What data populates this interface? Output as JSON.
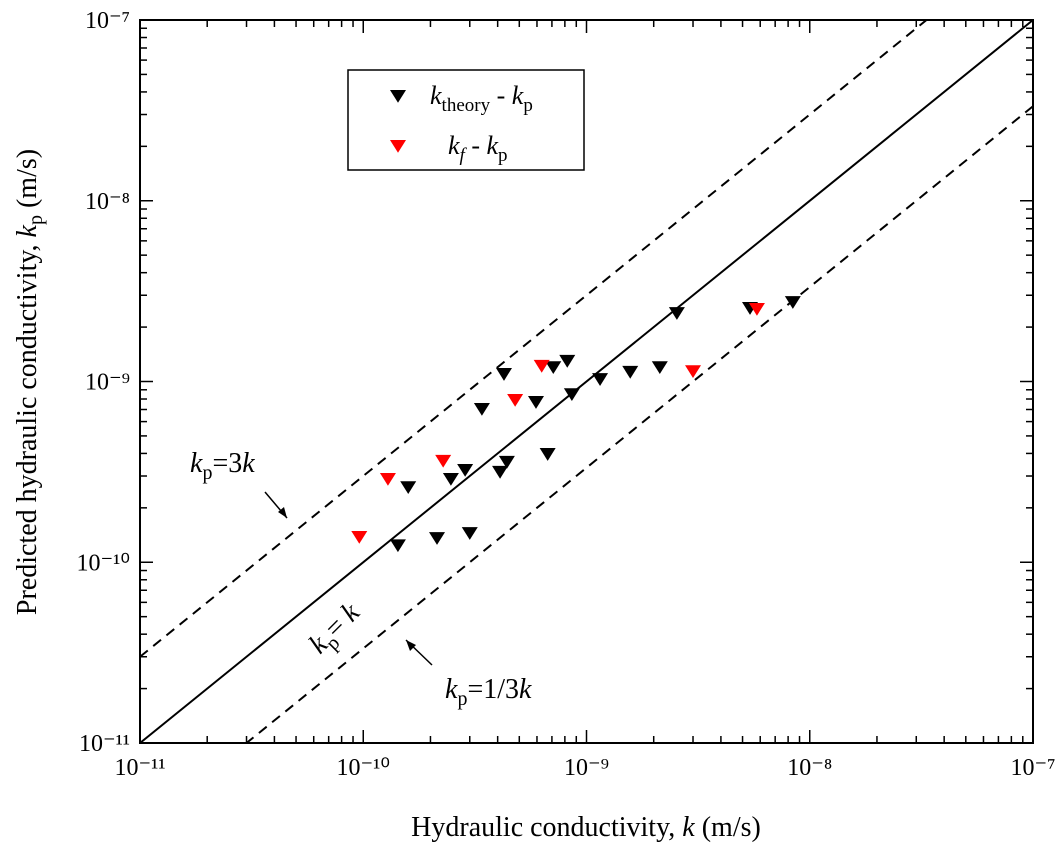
{
  "chart_data": {
    "type": "scatter",
    "x_label": [
      "Hydraulic conductivity, ",
      "k",
      " (m/s)"
    ],
    "y_label": [
      "Predicted hydraulic conductivity, ",
      "k",
      "p",
      " (m/s)"
    ],
    "xscale": "log",
    "yscale": "log",
    "xlim": [
      1e-11,
      1e-07
    ],
    "ylim": [
      1e-11,
      1e-07
    ],
    "xticks": [
      {
        "value": 1e-11,
        "label": "10⁻¹¹"
      },
      {
        "value": 1e-10,
        "label": "10⁻¹⁰"
      },
      {
        "value": 1e-09,
        "label": "10⁻⁹"
      },
      {
        "value": 1e-08,
        "label": "10⁻⁸"
      },
      {
        "value": 1e-07,
        "label": "10⁻⁷"
      }
    ],
    "yticks": [
      {
        "value": 1e-11,
        "label": "10⁻¹¹"
      },
      {
        "value": 1e-10,
        "label": "10⁻¹⁰"
      },
      {
        "value": 1e-09,
        "label": "10⁻⁹"
      },
      {
        "value": 1e-08,
        "label": "10⁻⁸"
      },
      {
        "value": 1e-07,
        "label": "10⁻⁷"
      }
    ],
    "series": [
      {
        "name": [
          "k",
          "theory",
          " - ",
          "k",
          "p"
        ],
        "color": "#000000",
        "x": [
          1.43e-10,
          1.59e-10,
          2.14e-10,
          2.47e-10,
          2.86e-10,
          3e-10,
          3.4e-10,
          4.1e-10,
          4.4e-10,
          4.27e-10,
          5.94e-10,
          6.7e-10,
          7.1e-10,
          8.2e-10,
          8.6e-10,
          1.15e-09,
          1.57e-09,
          2.13e-09,
          2.54e-09,
          5.4e-09,
          8.4e-09
        ],
        "values": [
          1.24e-10,
          2.6e-10,
          1.36e-10,
          2.89e-10,
          3.24e-10,
          1.45e-10,
          7.05e-10,
          3.16e-10,
          3.59e-10,
          1.1e-09,
          7.7e-10,
          3.97e-10,
          1.2e-09,
          1.3e-09,
          8.5e-10,
          1.03e-09,
          1.13e-09,
          1.2e-09,
          2.39e-09,
          2.55e-09,
          2.75e-09
        ]
      },
      {
        "name": [
          "k",
          "f",
          " - ",
          "k",
          "p"
        ],
        "color": "#ff0000",
        "x": [
          9.6e-11,
          1.29e-10,
          2.28e-10,
          4.79e-10,
          6.3e-10,
          3e-09,
          5.8e-09
        ],
        "values": [
          1.38e-10,
          2.89e-10,
          3.64e-10,
          7.9e-10,
          1.22e-09,
          1.14e-09,
          2.52e-09
        ]
      }
    ],
    "reference_lines": [
      {
        "factor": 1,
        "dash": false,
        "label": [
          "k",
          "p",
          "= ",
          "k"
        ]
      },
      {
        "factor": 3,
        "dash": true,
        "label": [
          "k",
          "p",
          "=3",
          "k"
        ]
      },
      {
        "factor": 0.3333,
        "dash": true,
        "label": [
          "k",
          "p",
          "=1/3",
          "k"
        ]
      }
    ]
  }
}
